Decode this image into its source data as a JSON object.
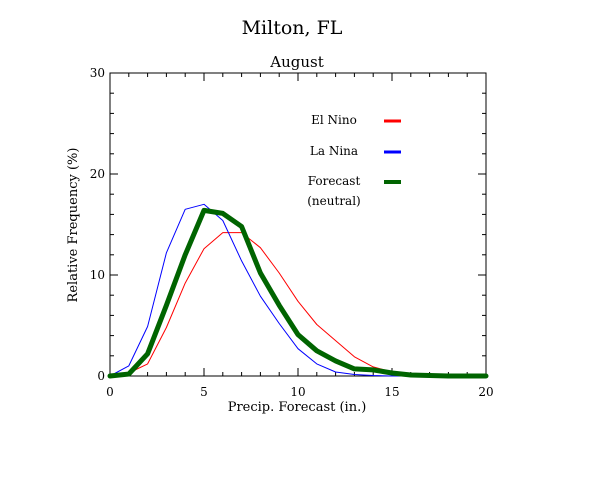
{
  "chart_data": {
    "type": "line",
    "title": "Milton, FL",
    "subtitle": "August",
    "xlabel": "Precip. Forecast (in.)",
    "ylabel": "Relative Frequency (%)",
    "xlim": [
      0,
      20
    ],
    "ylim": [
      0,
      30
    ],
    "x_ticks": [
      "0",
      "5",
      "10",
      "15",
      "20"
    ],
    "y_ticks": [
      "0",
      "10",
      "20",
      "30"
    ],
    "grid": false,
    "legend_placement": "upper-right-inside",
    "legend": [
      {
        "label": "El Nino",
        "color": "#ff0000"
      },
      {
        "label": "La Nina",
        "color": "#0000ff"
      },
      {
        "label": "Forecast",
        "label2": "(neutral)",
        "color": "#006400"
      }
    ],
    "x": [
      0,
      1,
      2,
      3,
      4,
      5,
      6,
      7,
      8,
      9,
      10,
      11,
      12,
      13,
      14,
      15,
      16,
      17,
      18,
      19,
      20
    ],
    "series": [
      {
        "name": "El Nino",
        "color": "#ff0000",
        "width": 1,
        "values": [
          0,
          0.3,
          1.2,
          4.8,
          9.2,
          12.6,
          14.2,
          14.2,
          12.7,
          10.2,
          7.4,
          5.1,
          3.5,
          1.9,
          0.9,
          0.4,
          0.1,
          0.05,
          0,
          0,
          0
        ]
      },
      {
        "name": "La Nina",
        "color": "#0000ff",
        "width": 1,
        "values": [
          0,
          1.0,
          4.9,
          12.2,
          16.5,
          17.0,
          15.4,
          11.4,
          7.9,
          5.2,
          2.7,
          1.2,
          0.4,
          0.15,
          0.05,
          0,
          0,
          0,
          0,
          0,
          0
        ]
      },
      {
        "name": "Forecast",
        "color": "#006400",
        "width": 5,
        "values": [
          0,
          0.2,
          2.2,
          7.0,
          12.0,
          16.4,
          16.1,
          14.8,
          10.2,
          7.0,
          4.1,
          2.5,
          1.5,
          0.7,
          0.6,
          0.3,
          0.1,
          0.05,
          0,
          0,
          0
        ]
      }
    ]
  }
}
